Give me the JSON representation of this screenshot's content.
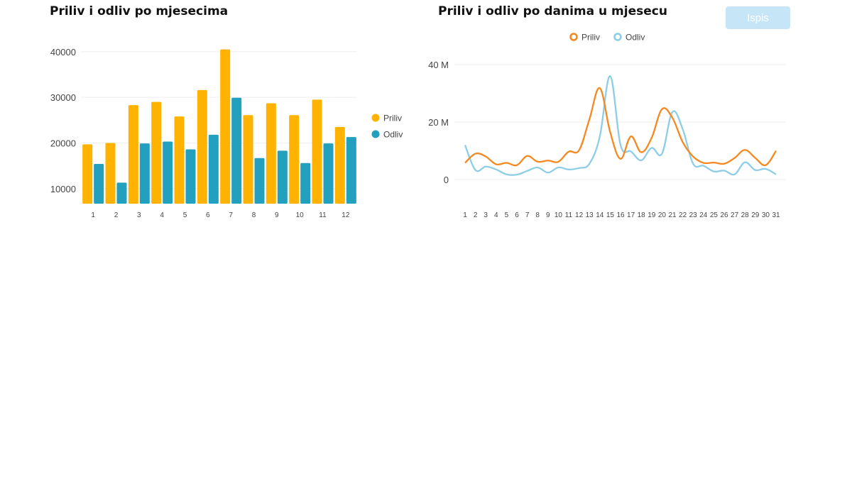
{
  "page": {
    "print_label": "Ispis"
  },
  "chart_data": [
    {
      "type": "bar",
      "title": "Priliv i odliv po mjesecima",
      "categories": [
        "1",
        "2",
        "3",
        "4",
        "5",
        "6",
        "7",
        "8",
        "9",
        "10",
        "11",
        "12"
      ],
      "series": [
        {
          "name": "Priliv",
          "color": "#ffb300",
          "values": [
            19700,
            20000,
            28300,
            29000,
            25800,
            31600,
            40500,
            26100,
            28700,
            26100,
            29500,
            23500
          ]
        },
        {
          "name": "Odliv",
          "color": "#23a0bd",
          "values": [
            15400,
            11300,
            19900,
            20300,
            18600,
            21800,
            29900,
            16700,
            18300,
            15600,
            19900,
            21300
          ]
        }
      ],
      "yticks": [
        10000,
        20000,
        30000,
        40000
      ],
      "ytick_labels": [
        "10000",
        "20000",
        "30000",
        "40000"
      ],
      "ylim": [
        6700,
        42000
      ],
      "legend_position": "right",
      "grid": true
    },
    {
      "type": "line",
      "title": "Priliv i odliv po danima u mjesecu",
      "x": [
        "1",
        "2",
        "3",
        "4",
        "5",
        "6",
        "7",
        "8",
        "9",
        "10",
        "11",
        "12",
        "13",
        "14",
        "15",
        "16",
        "17",
        "18",
        "19",
        "20",
        "21",
        "22",
        "23",
        "24",
        "25",
        "26",
        "27",
        "28",
        "29",
        "30",
        "31"
      ],
      "series": [
        {
          "name": "Priliv",
          "color": "#f5881f",
          "values": [
            5.8,
            9.0,
            8.0,
            5.3,
            5.8,
            5.0,
            8.2,
            6.2,
            6.6,
            6.2,
            9.7,
            10.2,
            21.0,
            31.8,
            16.5,
            7.2,
            15.0,
            9.5,
            14.5,
            24.5,
            21.5,
            13.0,
            8.0,
            5.8,
            5.9,
            5.5,
            7.5,
            10.3,
            7.5,
            5.0,
            10.0
          ]
        },
        {
          "name": "Odliv",
          "color": "#8ecde6",
          "values": [
            12.0,
            3.3,
            4.5,
            3.5,
            1.8,
            1.7,
            3.0,
            4.2,
            2.4,
            4.2,
            3.5,
            4.0,
            5.5,
            15.0,
            36.0,
            12.0,
            9.8,
            6.7,
            11.0,
            9.0,
            23.5,
            17.5,
            5.5,
            4.8,
            2.8,
            3.1,
            1.8,
            6.0,
            3.3,
            3.7,
            1.8
          ]
        }
      ],
      "yticks": [
        0,
        20,
        40
      ],
      "ytick_labels": [
        "0",
        "20 M",
        "40 M"
      ],
      "ylim": [
        -10,
        40
      ],
      "legend_position": "top",
      "grid": true
    }
  ]
}
